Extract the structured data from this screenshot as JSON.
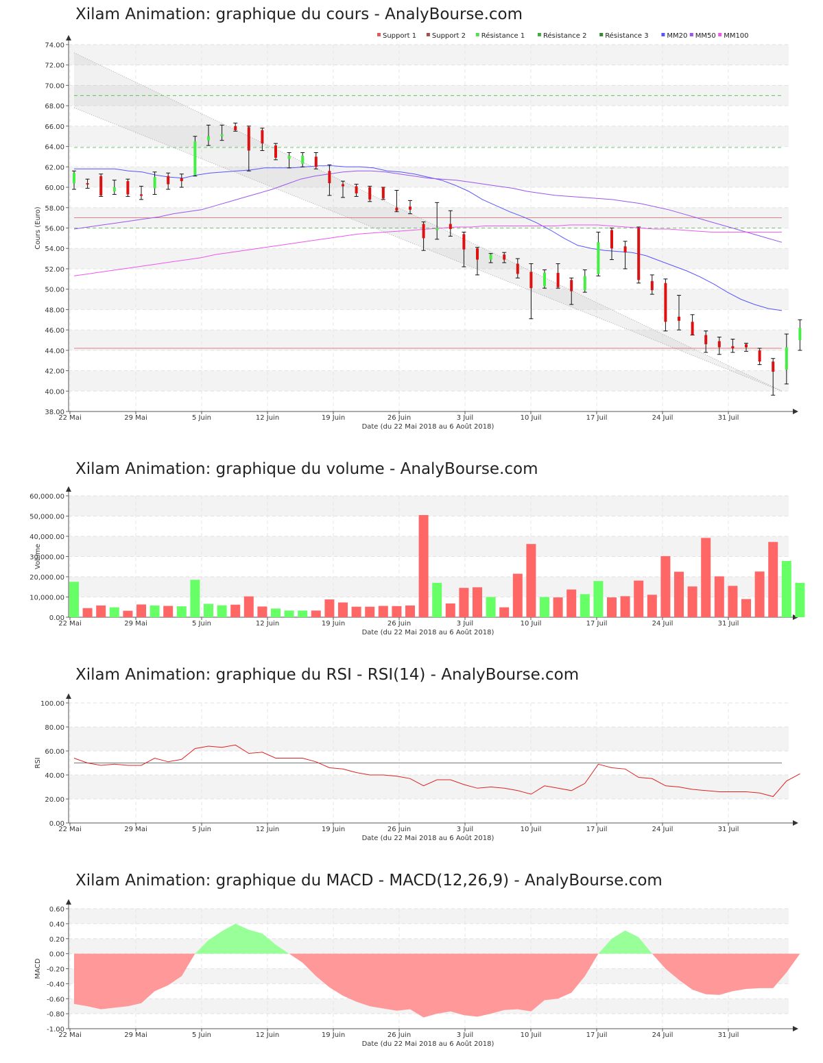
{
  "x_axis": {
    "tick_labels": [
      "22 Mai",
      "29 Mai",
      "5 Juin",
      "12 Juin",
      "19 Juin",
      "26 Juin",
      "3 Juil",
      "10 Juil",
      "17 Juil",
      "24 Juil",
      "31 Juil"
    ],
    "label": "Date (du 22 Mai 2018 au 6 Août 2018)"
  },
  "price": {
    "title": "Xilam Animation: graphique du cours - AnalyBourse.com",
    "chart_data": {
      "type": "candlestick",
      "ylabel": "Cours (Euro)",
      "ylim": [
        38,
        74
      ],
      "yticks": [
        "38.00",
        "40.00",
        "42.00",
        "44.00",
        "46.00",
        "48.00",
        "50.00",
        "52.00",
        "54.00",
        "56.00",
        "58.00",
        "60.00",
        "62.00",
        "64.00",
        "66.00",
        "68.00",
        "70.00",
        "72.00",
        "74.00"
      ],
      "legend": [
        {
          "name": "Support 1",
          "color": "#e05a5a"
        },
        {
          "name": "Support 2",
          "color": "#a05050"
        },
        {
          "name": "Résistance 1",
          "color": "#55dd55"
        },
        {
          "name": "Résistance 2",
          "color": "#44aa44"
        },
        {
          "name": "Résistance 3",
          "color": "#338833"
        },
        {
          "name": "MM20",
          "color": "#5555ff"
        },
        {
          "name": "MM50",
          "color": "#9955ee"
        },
        {
          "name": "MM100",
          "color": "#ee55ee"
        }
      ],
      "levels": {
        "support_1": 57.0,
        "support_2": 44.2,
        "resistance_1": 56.0,
        "resistance_2": 63.9,
        "resistance_3": 69.0
      },
      "channel": {
        "upper": [
          73.2,
          40.0
        ],
        "lower": [
          67.8,
          40.0
        ]
      },
      "candles": [
        {
          "o": 60.4,
          "h": 61.6,
          "l": 59.8,
          "c": 61.4
        },
        {
          "o": 60.4,
          "h": 60.8,
          "l": 59.9,
          "c": 60.3
        },
        {
          "o": 61.1,
          "h": 61.3,
          "l": 59.1,
          "c": 59.2
        },
        {
          "o": 59.6,
          "h": 60.7,
          "l": 59.3,
          "c": 60.0
        },
        {
          "o": 60.6,
          "h": 60.8,
          "l": 59.1,
          "c": 59.3
        },
        {
          "o": 59.3,
          "h": 60.1,
          "l": 58.8,
          "c": 59.2
        },
        {
          "o": 59.9,
          "h": 61.5,
          "l": 59.3,
          "c": 61.0
        },
        {
          "o": 61.1,
          "h": 61.4,
          "l": 59.8,
          "c": 60.3
        },
        {
          "o": 60.9,
          "h": 61.3,
          "l": 60.0,
          "c": 60.6
        },
        {
          "o": 61.2,
          "h": 65.0,
          "l": 61.1,
          "c": 64.5
        },
        {
          "o": 64.6,
          "h": 66.1,
          "l": 64.1,
          "c": 65.0
        },
        {
          "o": 65.0,
          "h": 66.1,
          "l": 64.6,
          "c": 65.2
        },
        {
          "o": 66.0,
          "h": 66.3,
          "l": 65.5,
          "c": 65.6
        },
        {
          "o": 65.9,
          "h": 66.0,
          "l": 61.6,
          "c": 63.6
        },
        {
          "o": 65.6,
          "h": 65.8,
          "l": 63.6,
          "c": 64.3
        },
        {
          "o": 64.1,
          "h": 64.3,
          "l": 62.7,
          "c": 62.9
        },
        {
          "o": 62.8,
          "h": 63.4,
          "l": 61.9,
          "c": 63.1
        },
        {
          "o": 62.3,
          "h": 63.4,
          "l": 62.0,
          "c": 63.1
        },
        {
          "o": 63.0,
          "h": 63.4,
          "l": 61.8,
          "c": 62.0
        },
        {
          "o": 61.6,
          "h": 62.2,
          "l": 59.2,
          "c": 60.4
        },
        {
          "o": 60.3,
          "h": 60.6,
          "l": 59.0,
          "c": 60.1
        },
        {
          "o": 60.1,
          "h": 60.3,
          "l": 59.1,
          "c": 59.4
        },
        {
          "o": 60.0,
          "h": 60.1,
          "l": 58.6,
          "c": 58.8
        },
        {
          "o": 60.0,
          "h": 60.0,
          "l": 58.8,
          "c": 58.9
        },
        {
          "o": 58.0,
          "h": 59.7,
          "l": 57.6,
          "c": 57.7
        },
        {
          "o": 58.1,
          "h": 58.7,
          "l": 57.4,
          "c": 57.8
        },
        {
          "o": 56.4,
          "h": 56.6,
          "l": 53.8,
          "c": 55.0
        },
        {
          "o": 55.8,
          "h": 58.5,
          "l": 54.9,
          "c": 56.0
        },
        {
          "o": 56.4,
          "h": 57.7,
          "l": 55.2,
          "c": 55.9
        },
        {
          "o": 55.4,
          "h": 55.6,
          "l": 52.2,
          "c": 53.9
        },
        {
          "o": 54.0,
          "h": 54.1,
          "l": 51.4,
          "c": 52.9
        },
        {
          "o": 52.9,
          "h": 53.5,
          "l": 52.6,
          "c": 53.4
        },
        {
          "o": 53.4,
          "h": 53.6,
          "l": 52.6,
          "c": 52.9
        },
        {
          "o": 52.5,
          "h": 53.0,
          "l": 51.1,
          "c": 51.5
        },
        {
          "o": 51.7,
          "h": 52.5,
          "l": 47.1,
          "c": 50.1
        },
        {
          "o": 50.3,
          "h": 51.9,
          "l": 50.1,
          "c": 51.6
        },
        {
          "o": 51.6,
          "h": 52.5,
          "l": 50.1,
          "c": 50.2
        },
        {
          "o": 50.9,
          "h": 51.1,
          "l": 48.5,
          "c": 49.8
        },
        {
          "o": 49.9,
          "h": 51.9,
          "l": 49.7,
          "c": 51.3
        },
        {
          "o": 51.5,
          "h": 55.6,
          "l": 51.3,
          "c": 54.6
        },
        {
          "o": 55.8,
          "h": 56.0,
          "l": 52.9,
          "c": 54.0
        },
        {
          "o": 54.2,
          "h": 54.7,
          "l": 52.0,
          "c": 53.6
        },
        {
          "o": 56.0,
          "h": 56.1,
          "l": 50.6,
          "c": 50.9
        },
        {
          "o": 50.8,
          "h": 51.4,
          "l": 49.5,
          "c": 49.9
        },
        {
          "o": 50.6,
          "h": 51.0,
          "l": 45.9,
          "c": 46.8
        },
        {
          "o": 47.3,
          "h": 49.4,
          "l": 46.0,
          "c": 46.9
        },
        {
          "o": 46.8,
          "h": 47.5,
          "l": 45.5,
          "c": 45.5
        },
        {
          "o": 45.5,
          "h": 45.9,
          "l": 43.8,
          "c": 44.6
        },
        {
          "o": 44.9,
          "h": 45.3,
          "l": 43.6,
          "c": 44.3
        },
        {
          "o": 44.4,
          "h": 45.1,
          "l": 43.8,
          "c": 44.2
        },
        {
          "o": 44.6,
          "h": 44.7,
          "l": 43.9,
          "c": 44.3
        },
        {
          "o": 44.0,
          "h": 44.2,
          "l": 42.6,
          "c": 42.9
        },
        {
          "o": 42.9,
          "h": 43.2,
          "l": 39.6,
          "c": 41.9
        },
        {
          "o": 42.1,
          "h": 45.6,
          "l": 40.7,
          "c": 44.3
        },
        {
          "o": 45.0,
          "h": 47.0,
          "l": 44.0,
          "c": 46.2
        }
      ],
      "mm20": [
        61.8,
        61.8,
        61.8,
        61.8,
        61.6,
        61.5,
        61.2,
        61.0,
        60.9,
        61.2,
        61.4,
        61.5,
        61.6,
        61.7,
        61.9,
        61.9,
        61.9,
        62.0,
        62.1,
        62.1,
        62.0,
        62.0,
        61.9,
        61.6,
        61.5,
        61.3,
        61.0,
        60.7,
        60.2,
        59.6,
        58.8,
        58.2,
        57.6,
        57.1,
        56.5,
        55.8,
        55.0,
        54.3,
        54.0,
        53.8,
        53.7,
        53.6,
        53.3,
        52.8,
        52.3,
        51.8,
        51.2,
        50.5,
        49.7,
        49.0,
        48.5,
        48.1,
        47.9
      ],
      "mm50": [
        55.9,
        56.1,
        56.3,
        56.5,
        56.7,
        56.9,
        57.1,
        57.4,
        57.6,
        57.8,
        58.2,
        58.6,
        59.0,
        59.4,
        59.8,
        60.3,
        60.8,
        61.1,
        61.3,
        61.5,
        61.6,
        61.6,
        61.5,
        61.3,
        61.1,
        60.9,
        60.8,
        60.7,
        60.5,
        60.3,
        60.1,
        59.9,
        59.6,
        59.4,
        59.2,
        59.1,
        59.0,
        58.9,
        58.8,
        58.6,
        58.4,
        58.1,
        57.8,
        57.4,
        57.0,
        56.6,
        56.2,
        55.8,
        55.4,
        55.0,
        54.6
      ],
      "mm100": [
        51.3,
        51.5,
        51.7,
        51.9,
        52.1,
        52.3,
        52.5,
        52.7,
        52.9,
        53.1,
        53.4,
        53.6,
        53.8,
        54.0,
        54.2,
        54.4,
        54.6,
        54.8,
        55.0,
        55.2,
        55.4,
        55.5,
        55.6,
        55.7,
        55.8,
        55.9,
        56.0,
        56.1,
        56.1,
        56.2,
        56.2,
        56.2,
        56.2,
        56.2,
        56.2,
        56.3,
        56.3,
        56.3,
        56.2,
        56.1,
        56.0,
        55.9,
        55.9,
        55.8,
        55.7,
        55.6,
        55.6,
        55.6,
        55.6,
        55.6,
        55.6
      ]
    }
  },
  "volume": {
    "title": "Xilam Animation: graphique du volume - AnalyBourse.com",
    "chart_data": {
      "type": "bar",
      "ylabel": "Volume",
      "ylim": [
        0,
        60000
      ],
      "yticks": [
        "0.00",
        "10,000.00",
        "20,000.00",
        "30,000.00",
        "40,000.00",
        "50,000.00",
        "60,000.00"
      ],
      "up_color": "#66ff66",
      "down_color": "#ff6666",
      "values": [
        17500,
        4500,
        5800,
        4900,
        3200,
        6300,
        5800,
        5600,
        5400,
        18500,
        6600,
        5900,
        6200,
        10300,
        5300,
        4300,
        3300,
        3300,
        3300,
        8800,
        7300,
        5200,
        5200,
        5600,
        5500,
        5800,
        50500,
        17000,
        6800,
        14500,
        14800,
        10000,
        4900,
        21500,
        36200,
        10000,
        9800,
        13700,
        11400,
        17900,
        9800,
        10400,
        18100,
        11100,
        30200,
        22500,
        15200,
        39200,
        20200,
        15500,
        9000,
        22600,
        37200,
        27800,
        17000
      ],
      "up": [
        1,
        0,
        0,
        1,
        0,
        0,
        1,
        0,
        1,
        1,
        1,
        1,
        0,
        0,
        0,
        1,
        1,
        1,
        0,
        0,
        0,
        0,
        0,
        0,
        0,
        0,
        0,
        1,
        0,
        0,
        0,
        1,
        0,
        0,
        0,
        1,
        0,
        0,
        1,
        1,
        0,
        0,
        0,
        0,
        0,
        0,
        0,
        0,
        0,
        0,
        0,
        0,
        0,
        1,
        1
      ]
    }
  },
  "rsi": {
    "title": "Xilam Animation: graphique du RSI - RSI(14) - AnalyBourse.com",
    "chart_data": {
      "type": "line",
      "ylabel": "RSI",
      "ylim": [
        0,
        100
      ],
      "yticks": [
        "0.00",
        "20.00",
        "40.00",
        "60.00",
        "80.00",
        "100.00"
      ],
      "reference": 50,
      "values": [
        54,
        50,
        48,
        49,
        48,
        48,
        54,
        51,
        53,
        62,
        64,
        63,
        65,
        58,
        59,
        54,
        54,
        54,
        51,
        46,
        45,
        42,
        40,
        40,
        39,
        37,
        31,
        36,
        36,
        32,
        29,
        30,
        29,
        27,
        24,
        31,
        29,
        27,
        33,
        49,
        46,
        45,
        38,
        37,
        31,
        30,
        28,
        27,
        26,
        26,
        26,
        25,
        22,
        35,
        41
      ]
    }
  },
  "macd": {
    "title": "Xilam Animation: graphique du MACD - MACD(12,26,9) - AnalyBourse.com",
    "chart_data": {
      "type": "area",
      "ylabel": "MACD",
      "ylim": [
        -1.0,
        0.6
      ],
      "yticks": [
        "-1.00",
        "-0.80",
        "-0.60",
        "-0.40",
        "-0.20",
        "0.00",
        "0.20",
        "0.40",
        "0.60"
      ],
      "positive_color": "#99ff99",
      "negative_color": "#ff9999",
      "values": [
        -0.67,
        -0.7,
        -0.74,
        -0.72,
        -0.7,
        -0.66,
        -0.5,
        -0.42,
        -0.3,
        0.0,
        0.18,
        0.3,
        0.4,
        0.32,
        0.27,
        0.12,
        0.0,
        -0.12,
        -0.3,
        -0.45,
        -0.56,
        -0.64,
        -0.7,
        -0.73,
        -0.76,
        -0.74,
        -0.85,
        -0.8,
        -0.77,
        -0.82,
        -0.84,
        -0.8,
        -0.75,
        -0.74,
        -0.77,
        -0.62,
        -0.6,
        -0.52,
        -0.3,
        0.0,
        0.2,
        0.31,
        0.22,
        0.0,
        -0.2,
        -0.35,
        -0.48,
        -0.54,
        -0.55,
        -0.5,
        -0.47,
        -0.46,
        -0.46,
        -0.25,
        0.0
      ]
    }
  }
}
